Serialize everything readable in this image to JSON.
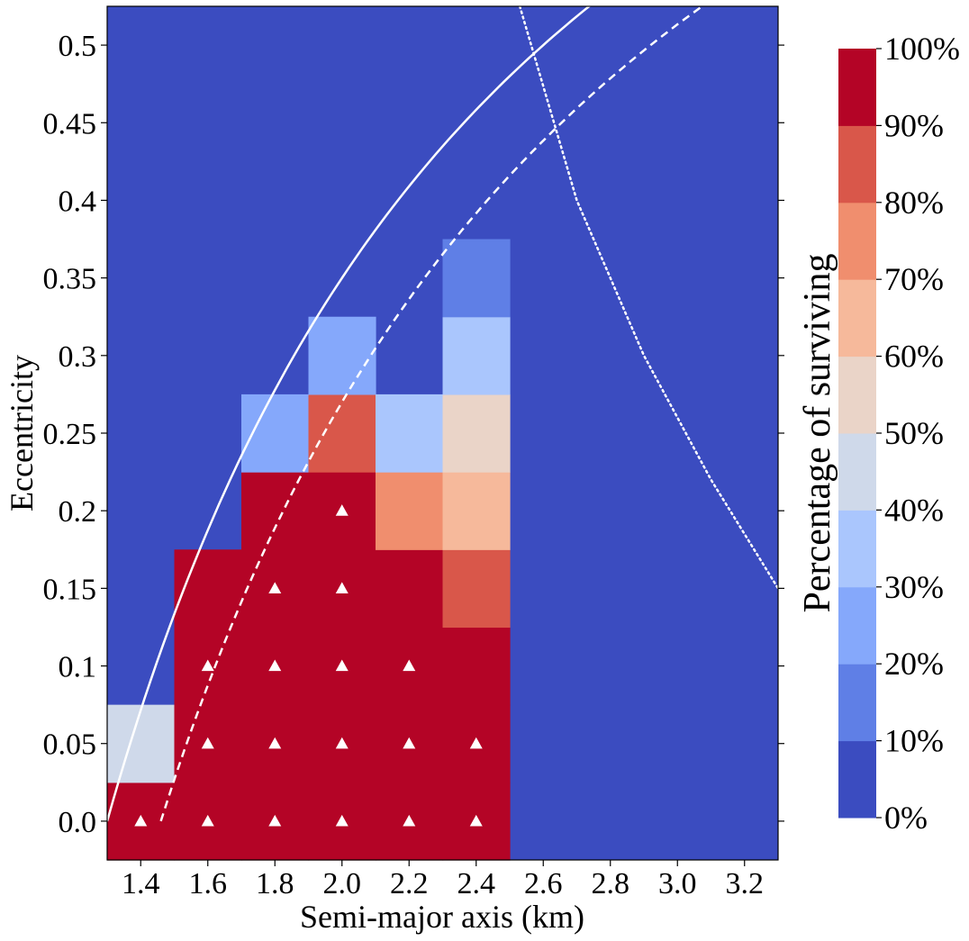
{
  "chart_data": {
    "type": "heatmap",
    "title": "",
    "xlabel": "Semi-major axis (km)",
    "ylabel": "Eccentricity",
    "xlim": [
      1.3,
      3.3
    ],
    "ylim": [
      -0.025,
      0.525
    ],
    "x_ticks": [
      "1.4",
      "1.6",
      "1.8",
      "2.0",
      "2.2",
      "2.4",
      "2.6",
      "2.8",
      "3.0",
      "3.2"
    ],
    "x_tick_values": [
      1.4,
      1.6,
      1.8,
      2.0,
      2.2,
      2.4,
      2.6,
      2.8,
      3.0,
      3.2
    ],
    "y_ticks": [
      "0.0",
      "0.05",
      "0.1",
      "0.15",
      "0.2",
      "0.25",
      "0.3",
      "0.35",
      "0.4",
      "0.45",
      "0.5"
    ],
    "y_tick_values": [
      0.0,
      0.05,
      0.1,
      0.15,
      0.2,
      0.25,
      0.3,
      0.35,
      0.4,
      0.45,
      0.5
    ],
    "cell_size": {
      "a": 0.2,
      "e": 0.05
    },
    "background_percent": 0,
    "cells": [
      {
        "a": 1.4,
        "e": 0.0,
        "percent": 100
      },
      {
        "a": 1.4,
        "e": 0.05,
        "percent": 45
      },
      {
        "a": 1.6,
        "e": 0.0,
        "percent": 100
      },
      {
        "a": 1.6,
        "e": 0.05,
        "percent": 100
      },
      {
        "a": 1.6,
        "e": 0.1,
        "percent": 100
      },
      {
        "a": 1.6,
        "e": 0.15,
        "percent": 90
      },
      {
        "a": 1.8,
        "e": 0.0,
        "percent": 100
      },
      {
        "a": 1.8,
        "e": 0.05,
        "percent": 100
      },
      {
        "a": 1.8,
        "e": 0.1,
        "percent": 100
      },
      {
        "a": 1.8,
        "e": 0.15,
        "percent": 100
      },
      {
        "a": 1.8,
        "e": 0.2,
        "percent": 90
      },
      {
        "a": 1.8,
        "e": 0.25,
        "percent": 25
      },
      {
        "a": 2.0,
        "e": 0.0,
        "percent": 100
      },
      {
        "a": 2.0,
        "e": 0.05,
        "percent": 100
      },
      {
        "a": 2.0,
        "e": 0.1,
        "percent": 100
      },
      {
        "a": 2.0,
        "e": 0.15,
        "percent": 100
      },
      {
        "a": 2.0,
        "e": 0.2,
        "percent": 100
      },
      {
        "a": 2.0,
        "e": 0.25,
        "percent": 85
      },
      {
        "a": 2.0,
        "e": 0.3,
        "percent": 25
      },
      {
        "a": 2.2,
        "e": 0.0,
        "percent": 100
      },
      {
        "a": 2.2,
        "e": 0.05,
        "percent": 100
      },
      {
        "a": 2.2,
        "e": 0.1,
        "percent": 100
      },
      {
        "a": 2.2,
        "e": 0.15,
        "percent": 90
      },
      {
        "a": 2.2,
        "e": 0.2,
        "percent": 75
      },
      {
        "a": 2.2,
        "e": 0.25,
        "percent": 35
      },
      {
        "a": 2.4,
        "e": 0.0,
        "percent": 100
      },
      {
        "a": 2.4,
        "e": 0.05,
        "percent": 100
      },
      {
        "a": 2.4,
        "e": 0.1,
        "percent": 90
      },
      {
        "a": 2.4,
        "e": 0.15,
        "percent": 85
      },
      {
        "a": 2.4,
        "e": 0.2,
        "percent": 65
      },
      {
        "a": 2.4,
        "e": 0.25,
        "percent": 55
      },
      {
        "a": 2.4,
        "e": 0.3,
        "percent": 35
      },
      {
        "a": 2.4,
        "e": 0.35,
        "percent": 15
      }
    ],
    "full_survival_markers": [
      {
        "a": 1.4,
        "e": 0.0
      },
      {
        "a": 1.6,
        "e": 0.0
      },
      {
        "a": 1.8,
        "e": 0.0
      },
      {
        "a": 2.0,
        "e": 0.0
      },
      {
        "a": 2.2,
        "e": 0.0
      },
      {
        "a": 2.4,
        "e": 0.0
      },
      {
        "a": 1.6,
        "e": 0.05
      },
      {
        "a": 1.8,
        "e": 0.05
      },
      {
        "a": 2.0,
        "e": 0.05
      },
      {
        "a": 2.2,
        "e": 0.05
      },
      {
        "a": 2.4,
        "e": 0.05
      },
      {
        "a": 1.6,
        "e": 0.1
      },
      {
        "a": 1.8,
        "e": 0.1
      },
      {
        "a": 2.0,
        "e": 0.1
      },
      {
        "a": 2.2,
        "e": 0.1
      },
      {
        "a": 1.8,
        "e": 0.15
      },
      {
        "a": 2.0,
        "e": 0.15
      },
      {
        "a": 2.0,
        "e": 0.2
      }
    ],
    "curves": [
      {
        "name": "solid",
        "style": "solid",
        "a0": 1.3,
        "a_end": 2.78
      },
      {
        "name": "dashed",
        "style": "dashed",
        "a0": 1.46,
        "a_end": 3.3
      },
      {
        "name": "dotted",
        "style": "dotted",
        "points": [
          [
            2.53,
            0.525
          ],
          [
            2.7,
            0.4
          ],
          [
            2.9,
            0.3
          ],
          [
            3.1,
            0.22
          ],
          [
            3.3,
            0.15
          ]
        ]
      }
    ],
    "colorbar": {
      "label": "Percentage of surviving",
      "tick_labels": [
        "0%",
        "10%",
        "20%",
        "30%",
        "40%",
        "50%",
        "60%",
        "70%",
        "80%",
        "90%",
        "100%"
      ],
      "colors": [
        "#3b4cc0",
        "#5f7fe6",
        "#85a8fb",
        "#aac6fd",
        "#cfd9ea",
        "#ead4c8",
        "#f6b99b",
        "#f08e6e",
        "#d9574a",
        "#b40426"
      ]
    }
  }
}
